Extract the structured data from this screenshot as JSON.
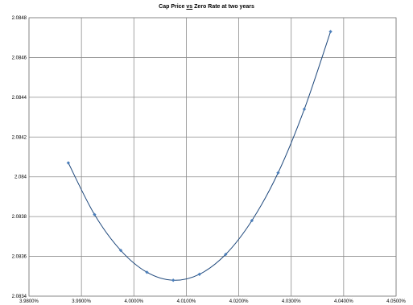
{
  "chart_data": {
    "type": "scatter",
    "title": {
      "before": "Cap Price ",
      "underlined": "vs",
      "after": " Zero Rate at two years"
    },
    "xlabel": "",
    "ylabel": "",
    "xlim": [
      3.98,
      4.05
    ],
    "ylim": [
      2.0834,
      2.0848
    ],
    "x_ticks": [
      3.98,
      3.99,
      4.0,
      4.01,
      4.02,
      4.03,
      4.04,
      4.05
    ],
    "x_tick_labels": [
      "3.9800%",
      "3.9900%",
      "4.0000%",
      "4.0100%",
      "4.0200%",
      "4.0300%",
      "4.0400%",
      "4.0500%"
    ],
    "y_ticks": [
      2.0834,
      2.0836,
      2.0838,
      2.084,
      2.0842,
      2.0844,
      2.0846,
      2.0848
    ],
    "y_tick_labels": [
      "2.0834",
      "2.0836",
      "2.0838",
      "2.084",
      "2.0842",
      "2.0844",
      "2.0846",
      "2.0848"
    ],
    "grid": true,
    "legend": "none",
    "series": [
      {
        "x": [
          3.9875,
          3.9925,
          3.9975,
          4.0025,
          4.0075,
          4.0125,
          4.0175,
          4.0225,
          4.0275,
          4.0325,
          4.0375
        ],
        "y": [
          2.08407,
          2.08381,
          2.08363,
          2.08352,
          2.08348,
          2.08351,
          2.08361,
          2.08378,
          2.08402,
          2.08434,
          2.08473
        ],
        "color": "#1f497d",
        "marker_color": "#4a7ebb",
        "smooth": true
      }
    ]
  }
}
